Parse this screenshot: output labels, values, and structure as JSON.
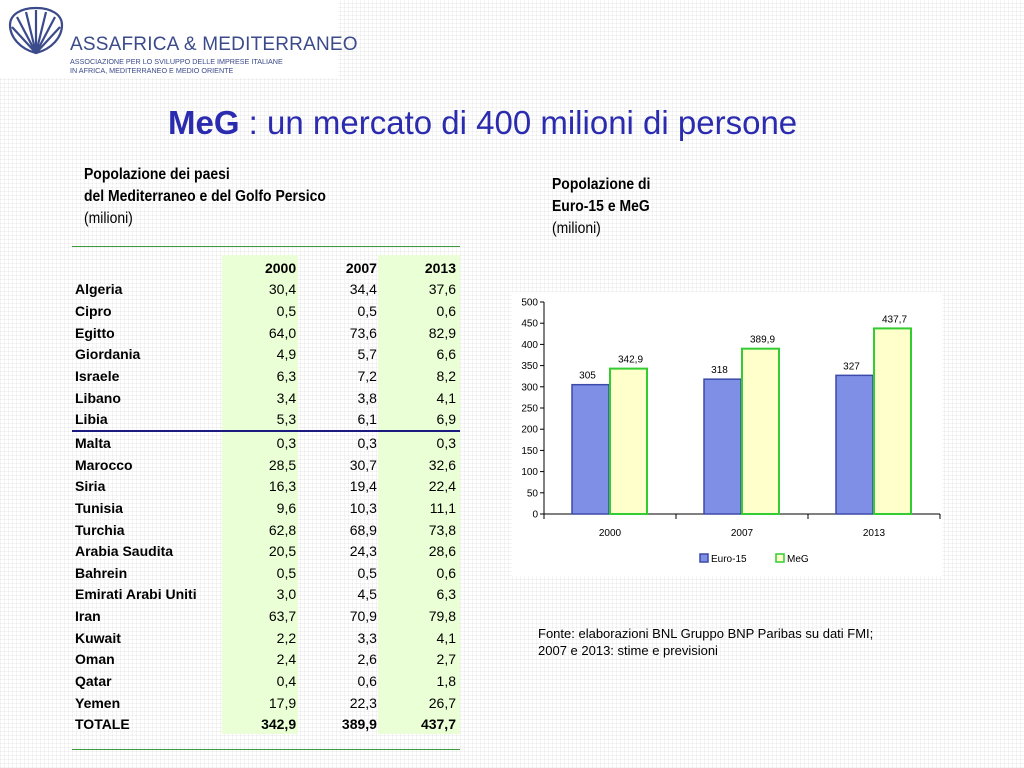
{
  "logo": {
    "name": "ASSAFRICA & MEDITERRANEO",
    "sub_line1": "ASSOCIAZIONE PER LO SVILUPPO DELLE IMPRESE ITALIANE",
    "sub_line2": "IN  AFRICA, MEDITERRANEO E MEDIO ORIENTE",
    "icon": "shell-icon"
  },
  "title": {
    "strong": "MeG",
    "rest": " : un mercato di 400 milioni di persone"
  },
  "table_caption": {
    "line1": "Popolazione dei paesi",
    "line2": "del Mediterraneo e del Golfo Persico",
    "line3": "(milioni)"
  },
  "chart_caption": {
    "line1": "Popolazione di",
    "line2": "Euro-15 e MeG",
    "line3": "(milioni)"
  },
  "table": {
    "headers": [
      "2000",
      "2007",
      "2013"
    ],
    "rows": [
      {
        "name": "Algeria",
        "values": [
          "30,4",
          "34,4",
          "37,6"
        ]
      },
      {
        "name": "Cipro",
        "values": [
          "0,5",
          "0,5",
          "0,6"
        ]
      },
      {
        "name": "Egitto",
        "values": [
          "64,0",
          "73,6",
          "82,9"
        ]
      },
      {
        "name": "Giordania",
        "values": [
          "4,9",
          "5,7",
          "6,6"
        ]
      },
      {
        "name": "Israele",
        "values": [
          "6,3",
          "7,2",
          "8,2"
        ]
      },
      {
        "name": "Libano",
        "values": [
          "3,4",
          "3,8",
          "4,1"
        ]
      },
      {
        "name": "Libia",
        "values": [
          "5,3",
          "6,1",
          "6,9"
        ]
      },
      {
        "name": "Malta",
        "values": [
          "0,3",
          "0,3",
          "0,3"
        ]
      },
      {
        "name": "Marocco",
        "values": [
          "28,5",
          "30,7",
          "32,6"
        ]
      },
      {
        "name": "Siria",
        "values": [
          "16,3",
          "19,4",
          "22,4"
        ]
      },
      {
        "name": "Tunisia",
        "values": [
          "9,6",
          "10,3",
          "11,1"
        ]
      },
      {
        "name": "Turchia",
        "values": [
          "62,8",
          "68,9",
          "73,8"
        ]
      },
      {
        "name": "Arabia Saudita",
        "values": [
          "20,5",
          "24,3",
          "28,6"
        ]
      },
      {
        "name": "Bahrein",
        "values": [
          "0,5",
          "0,5",
          "0,6"
        ]
      },
      {
        "name": "Emirati Arabi Uniti",
        "values": [
          "3,0",
          "4,5",
          "6,3"
        ]
      },
      {
        "name": "Iran",
        "values": [
          "63,7",
          "70,9",
          "79,8"
        ]
      },
      {
        "name": "Kuwait",
        "values": [
          "2,2",
          "3,3",
          "4,1"
        ]
      },
      {
        "name": "Oman",
        "values": [
          "2,4",
          "2,6",
          "2,7"
        ]
      },
      {
        "name": "Qatar",
        "values": [
          "0,4",
          "0,6",
          "1,8"
        ]
      },
      {
        "name": "Yemen",
        "values": [
          "17,9",
          "22,3",
          "26,7"
        ]
      },
      {
        "name": "TOTALE",
        "values": [
          "342,9",
          "389,9",
          "437,7"
        ]
      }
    ]
  },
  "chart_data": {
    "type": "bar",
    "categories": [
      "2000",
      "2007",
      "2013"
    ],
    "series": [
      {
        "name": "Euro-15",
        "values": [
          305,
          318,
          327
        ],
        "labels": [
          "305",
          "318",
          "327"
        ],
        "fill": "#7f8fe6",
        "stroke": "#3b4aa8"
      },
      {
        "name": "MeG",
        "values": [
          342.9,
          389.9,
          437.7
        ],
        "labels": [
          "342,9",
          "389,9",
          "437,7"
        ],
        "fill": "#ffffcc",
        "stroke": "#33cc33"
      }
    ],
    "ylim": [
      0,
      500
    ],
    "yticks": [
      0,
      50,
      100,
      150,
      200,
      250,
      300,
      350,
      400,
      450,
      500
    ],
    "legend": "bottom",
    "grid": false
  },
  "source": {
    "line1": "Fonte: elaborazioni BNL Gruppo BNP Paribas su dati FMI;",
    "line2": "2007 e 2013: stime e previsioni"
  }
}
